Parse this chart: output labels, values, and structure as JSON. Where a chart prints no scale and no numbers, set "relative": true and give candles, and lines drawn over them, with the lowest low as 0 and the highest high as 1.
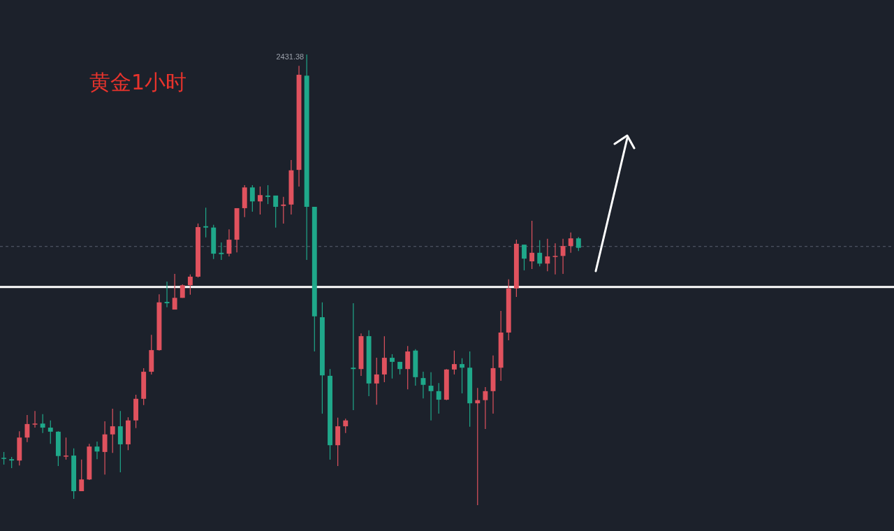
{
  "chart_data": {
    "type": "candlestick",
    "title": "黄金1小时",
    "relative": true,
    "categories": [
      null,
      null,
      null,
      null,
      null,
      null,
      null,
      null,
      null,
      null,
      null,
      null,
      null,
      null,
      null,
      null,
      null,
      null,
      null,
      null,
      null,
      null,
      null,
      null,
      null,
      null,
      null,
      null,
      null,
      null,
      null,
      null,
      null,
      null,
      null,
      null,
      null,
      null,
      null,
      null,
      null,
      null,
      null,
      null,
      null,
      null,
      null,
      null,
      null,
      null,
      null,
      null,
      null,
      null,
      null,
      null,
      null,
      null,
      null,
      null,
      null,
      null,
      null,
      null,
      null,
      null,
      null,
      null,
      null,
      null,
      null,
      null,
      null,
      null,
      null
    ],
    "ohlc": [
      [
        0.105,
        0.118,
        0.09,
        0.104
      ],
      [
        0.102,
        0.107,
        0.082,
        0.099
      ],
      [
        0.099,
        0.164,
        0.088,
        0.15
      ],
      [
        0.15,
        0.2,
        0.14,
        0.18
      ],
      [
        0.179,
        0.209,
        0.172,
        0.181
      ],
      [
        0.181,
        0.202,
        0.16,
        0.172
      ],
      [
        0.172,
        0.188,
        0.136,
        0.163
      ],
      [
        0.163,
        0.164,
        0.087,
        0.109
      ],
      [
        0.109,
        0.15,
        0.101,
        0.11
      ],
      [
        0.11,
        0.126,
        0.014,
        0.031
      ],
      [
        0.031,
        0.101,
        0.031,
        0.057
      ],
      [
        0.057,
        0.136,
        0.056,
        0.13
      ],
      [
        0.13,
        0.141,
        0.102,
        0.119
      ],
      [
        0.118,
        0.186,
        0.068,
        0.157
      ],
      [
        0.157,
        0.214,
        0.116,
        0.175
      ],
      [
        0.175,
        0.209,
        0.073,
        0.135
      ],
      [
        0.135,
        0.195,
        0.122,
        0.188
      ],
      [
        0.188,
        0.245,
        0.171,
        0.236
      ],
      [
        0.236,
        0.304,
        0.222,
        0.296
      ],
      [
        0.296,
        0.378,
        0.29,
        0.344
      ],
      [
        0.344,
        0.468,
        0.343,
        0.45
      ],
      [
        0.451,
        0.496,
        0.439,
        0.448
      ],
      [
        0.434,
        0.513,
        0.434,
        0.46
      ],
      [
        0.46,
        0.49,
        0.46,
        0.488
      ],
      [
        0.488,
        0.512,
        0.467,
        0.507
      ],
      [
        0.507,
        0.625,
        0.505,
        0.617
      ],
      [
        0.619,
        0.66,
        0.594,
        0.616
      ],
      [
        0.616,
        0.622,
        0.546,
        0.558
      ],
      [
        0.56,
        0.583,
        0.544,
        0.557
      ],
      [
        0.558,
        0.612,
        0.552,
        0.589
      ],
      [
        0.589,
        0.659,
        0.561,
        0.659
      ],
      [
        0.659,
        0.71,
        0.639,
        0.705
      ],
      [
        0.705,
        0.71,
        0.651,
        0.674
      ],
      [
        0.674,
        0.707,
        0.645,
        0.688
      ],
      [
        0.687,
        0.71,
        0.668,
        0.684
      ],
      [
        0.687,
        0.687,
        0.616,
        0.662
      ],
      [
        0.664,
        0.684,
        0.625,
        0.667
      ],
      [
        0.667,
        0.766,
        0.645,
        0.743
      ],
      [
        0.744,
        0.975,
        0.707,
        0.955
      ],
      [
        0.953,
        1,
        0.544,
        0.662
      ],
      [
        0.662,
        0.662,
        0.341,
        0.419
      ],
      [
        0.417,
        0.45,
        0.203,
        0.288
      ],
      [
        0.287,
        0.302,
        0.101,
        0.133
      ],
      [
        0.133,
        0.194,
        0.087,
        0.175
      ],
      [
        0.175,
        0.192,
        0.16,
        0.188
      ],
      [
        0.305,
        0.448,
        0.211,
        0.302
      ],
      [
        0.302,
        0.381,
        0.287,
        0.375
      ],
      [
        0.375,
        0.388,
        0.242,
        0.27
      ],
      [
        0.27,
        0.327,
        0.223,
        0.29
      ],
      [
        0.29,
        0.375,
        0.273,
        0.327
      ],
      [
        0.327,
        0.335,
        0.281,
        0.318
      ],
      [
        0.318,
        0.318,
        0.29,
        0.302
      ],
      [
        0.302,
        0.353,
        0.257,
        0.341
      ],
      [
        0.343,
        0.346,
        0.265,
        0.284
      ],
      [
        0.282,
        0.296,
        0.237,
        0.267
      ],
      [
        0.265,
        0.295,
        0.188,
        0.253
      ],
      [
        0.253,
        0.271,
        0.203,
        0.234
      ],
      [
        0.234,
        0.302,
        0.233,
        0.301
      ],
      [
        0.301,
        0.343,
        0.29,
        0.313
      ],
      [
        0.313,
        0.326,
        0.248,
        0.305
      ],
      [
        0.305,
        0.341,
        0.174,
        0.226
      ],
      [
        0.226,
        0.26,
        0,
        0.233
      ],
      [
        0.233,
        0.262,
        0.169,
        0.253
      ],
      [
        0.253,
        0.332,
        0.203,
        0.304
      ],
      [
        0.305,
        0.431,
        0.276,
        0.383
      ],
      [
        0.383,
        0.501,
        0.366,
        0.481
      ],
      [
        0.481,
        0.589,
        0.462,
        0.58
      ],
      [
        0.578,
        0.578,
        0.521,
        0.547
      ],
      [
        0.541,
        0.631,
        0.524,
        0.56
      ],
      [
        0.56,
        0.588,
        0.53,
        0.536
      ],
      [
        0.536,
        0.591,
        0.519,
        0.552
      ],
      [
        0.551,
        0.581,
        0.512,
        0.553
      ],
      [
        0.553,
        0.591,
        0.513,
        0.575
      ],
      [
        0.575,
        0.605,
        0.56,
        0.592
      ],
      [
        0.592,
        0.595,
        0.564,
        0.571
      ]
    ],
    "colors": [
      "#1fa88a",
      "#1fa88a",
      "#e0525e",
      "#e0525e",
      "#e0525e",
      "#1fa88a",
      "#1fa88a",
      "#1fa88a",
      "#e0525e",
      "#1fa88a",
      "#e0525e",
      "#e0525e",
      "#1fa88a",
      "#e0525e",
      "#e0525e",
      "#1fa88a",
      "#e0525e",
      "#e0525e",
      "#e0525e",
      "#e0525e",
      "#e0525e",
      "#1fa88a",
      "#e0525e",
      "#e0525e",
      "#e0525e",
      "#e0525e",
      "#1fa88a",
      "#1fa88a",
      "#1fa88a",
      "#e0525e",
      "#e0525e",
      "#e0525e",
      "#1fa88a",
      "#e0525e",
      "#1fa88a",
      "#1fa88a",
      "#e0525e",
      "#e0525e",
      "#e0525e",
      "#1fa88a",
      "#1fa88a",
      "#1fa88a",
      "#1fa88a",
      "#e0525e",
      "#e0525e",
      "#1fa88a",
      "#e0525e",
      "#1fa88a",
      "#e0525e",
      "#e0525e",
      "#1fa88a",
      "#1fa88a",
      "#e0525e",
      "#1fa88a",
      "#1fa88a",
      "#1fa88a",
      "#1fa88a",
      "#e0525e",
      "#e0525e",
      "#1fa88a",
      "#1fa88a",
      "#e0525e",
      "#e0525e",
      "#e0525e",
      "#e0525e",
      "#e0525e",
      "#e0525e",
      "#1fa88a",
      "#e0525e",
      "#1fa88a",
      "#e0525e",
      "#e0525e",
      "#e0525e",
      "#e0525e",
      "#1fa88a"
    ],
    "annotations": [
      "2431.38"
    ],
    "ref_lines": [
      {
        "axis": "y",
        "value": 0.484,
        "color": "#ffffff",
        "line_style": "solid"
      },
      {
        "axis": "y",
        "value": 0.574,
        "color": "#5a6270",
        "line_style": "dashed"
      }
    ]
  }
}
